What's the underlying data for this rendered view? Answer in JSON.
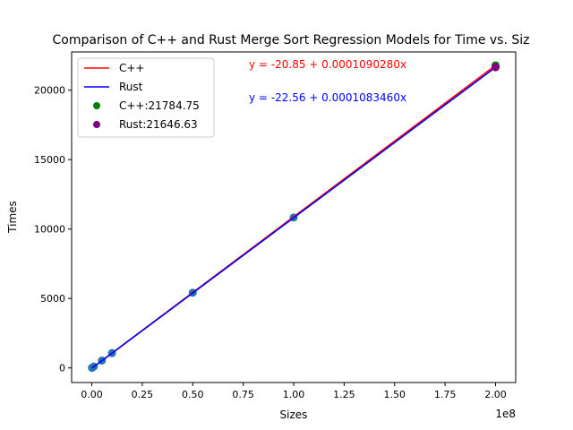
{
  "chart_data": {
    "type": "scatter",
    "title": "Comparison of C++ and Rust Merge Sort Regression Models for Time vs. Siz",
    "xlabel": "Sizes",
    "ylabel": "Times",
    "x_offset_text": "1e8",
    "xlim": [
      -0.1,
      2.1
    ],
    "ylim": [
      -1050,
      22750
    ],
    "xticks": [
      0.0,
      0.25,
      0.5,
      0.75,
      1.0,
      1.25,
      1.5,
      1.75,
      2.0
    ],
    "xtick_labels": [
      "0.00",
      "0.25",
      "0.50",
      "0.75",
      "1.00",
      "1.25",
      "1.50",
      "1.75",
      "2.00"
    ],
    "yticks": [
      0,
      5000,
      10000,
      15000,
      20000
    ],
    "ytick_labels": [
      "0",
      "5000",
      "10000",
      "15000",
      "20000"
    ],
    "grid": false,
    "legend_position": "top-left",
    "points_x": [
      0.001,
      0.01,
      0.05,
      0.1,
      0.5,
      1.0,
      2.0
    ],
    "points_y": [
      10,
      100,
      530,
      1070,
      5420,
      10830,
      21700
    ],
    "point_color": "#1f77b4",
    "regression": [
      {
        "name": "C++",
        "color": "#ff0000",
        "intercept": -20.85,
        "slope_per_1e8": 10902.8,
        "equation": "y = -20.85 + 0.0001090280x"
      },
      {
        "name": "Rust",
        "color": "#0000ff",
        "intercept": -22.56,
        "slope_per_1e8": 10834.6,
        "equation": "y = -22.56 + 0.0001083460x"
      }
    ],
    "highlight": [
      {
        "label": "C++:21784.75",
        "x": 2.0,
        "y": 21784.75,
        "color": "#008000"
      },
      {
        "label": "Rust:21646.63",
        "x": 2.0,
        "y": 21646.63,
        "color": "#800080"
      }
    ]
  }
}
